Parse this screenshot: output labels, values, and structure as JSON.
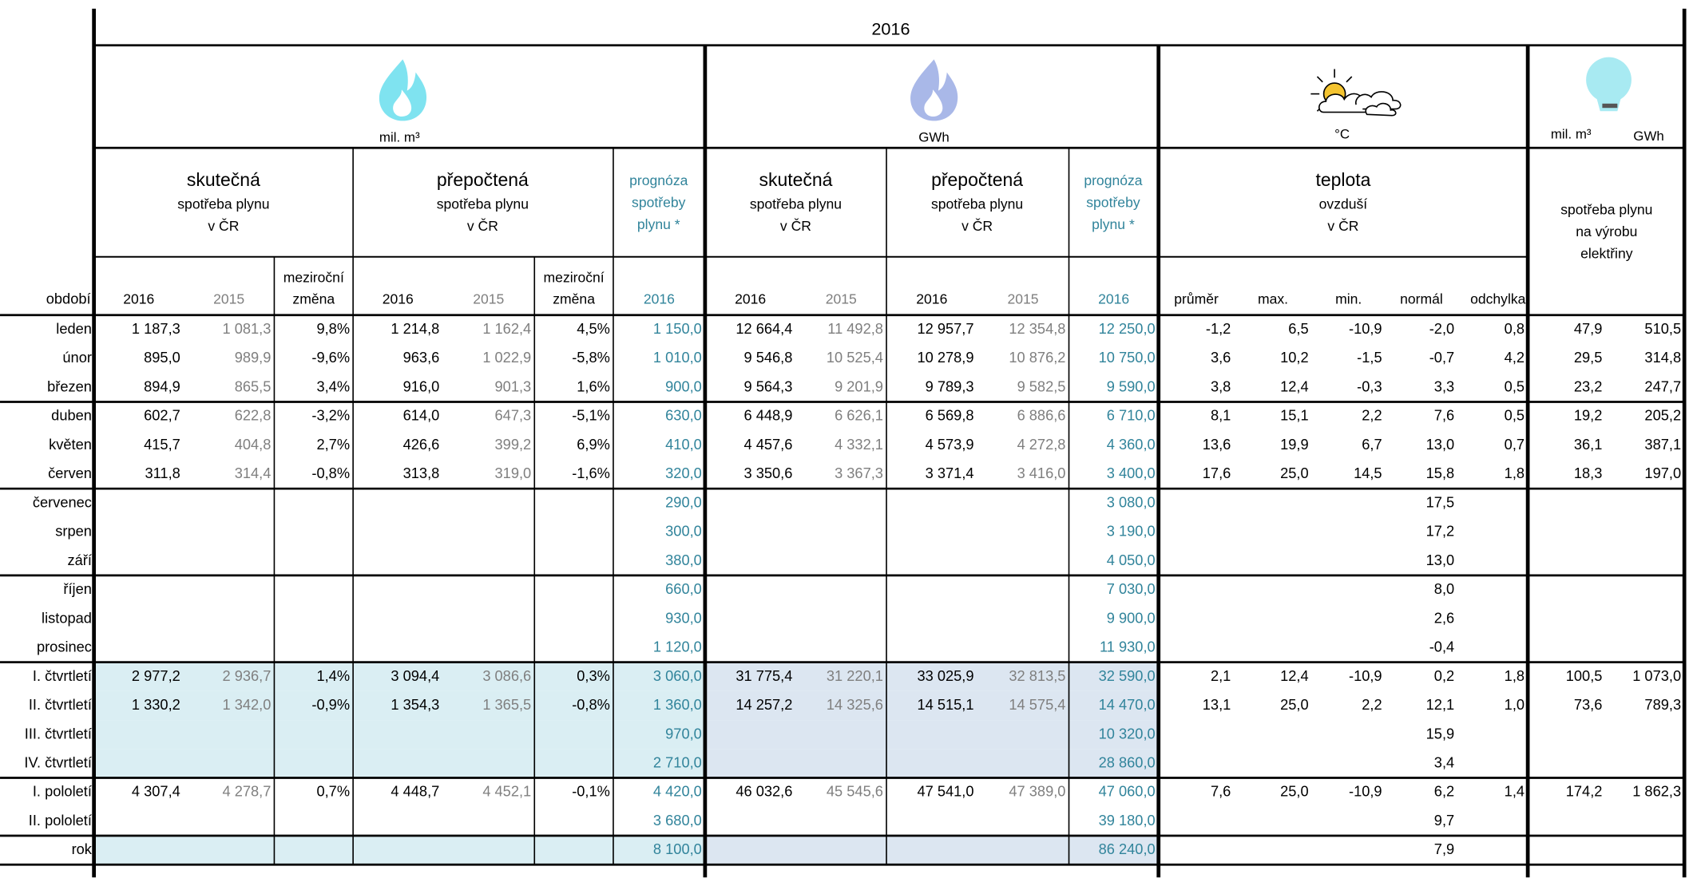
{
  "header": {
    "year": "2016",
    "units": [
      "mil. m³",
      "GWh",
      "°C",
      "mil. m³",
      "GWh"
    ],
    "groups": [
      {
        "title": "skutečná",
        "lines": [
          "spotřeba plynu",
          "v ČR"
        ]
      },
      {
        "title": "přepočtená",
        "lines": [
          "spotřeba plynu",
          "v ČR"
        ]
      },
      {
        "lines": [
          "prognóza",
          "spotřeby",
          "plynu *"
        ]
      },
      {
        "title": "skutečná",
        "lines": [
          "spotřeba plynu",
          "v ČR"
        ]
      },
      {
        "title": "přepočtená",
        "lines": [
          "spotřeba plynu",
          "v ČR"
        ]
      },
      {
        "lines": [
          "prognóza",
          "spotřeby",
          "plynu *"
        ]
      },
      {
        "title": "teplota",
        "lines": [
          "ovzduší",
          "v ČR"
        ]
      },
      {
        "lines": [
          "spotřeba plynu",
          "na výrobu",
          "elektřiny"
        ]
      }
    ]
  },
  "columns": [
    [
      "období"
    ],
    [
      "2016"
    ],
    [
      "2015"
    ],
    [
      "meziroční",
      "změna"
    ],
    [
      "2016"
    ],
    [
      "2015"
    ],
    [
      "meziroční",
      "změna"
    ],
    [
      "2016"
    ],
    [
      "2016"
    ],
    [
      "2015"
    ],
    [
      "2016"
    ],
    [
      "2015"
    ],
    [
      "2016"
    ],
    [
      "průměr"
    ],
    [
      "max."
    ],
    [
      "min."
    ],
    [
      "normál"
    ],
    [
      "odchylka"
    ]
  ],
  "rows": [
    {
      "label": "leden",
      "values": [
        "1 187,3",
        "1 081,3",
        "9,8%",
        "1 214,8",
        "1 162,4",
        "4,5%",
        "1 150,0",
        "12 664,4",
        "11 492,8",
        "12 957,7",
        "12 354,8",
        "12 250,0",
        "-1,2",
        "6,5",
        "-10,9",
        "-2,0",
        "0,8",
        "47,9",
        "510,5"
      ]
    },
    {
      "label": "únor",
      "values": [
        "895,0",
        "989,9",
        "-9,6%",
        "963,6",
        "1 022,9",
        "-5,8%",
        "1 010,0",
        "9 546,8",
        "10 525,4",
        "10 278,9",
        "10 876,2",
        "10 750,0",
        "3,6",
        "10,2",
        "-1,5",
        "-0,7",
        "4,2",
        "29,5",
        "314,8"
      ]
    },
    {
      "label": "březen",
      "values": [
        "894,9",
        "865,5",
        "3,4%",
        "916,0",
        "901,3",
        "1,6%",
        "900,0",
        "9 564,3",
        "9 201,9",
        "9 789,3",
        "9 582,5",
        "9 590,0",
        "3,8",
        "12,4",
        "-0,3",
        "3,3",
        "0,5",
        "23,2",
        "247,7"
      ]
    },
    {
      "label": "duben",
      "values": [
        "602,7",
        "622,8",
        "-3,2%",
        "614,0",
        "647,3",
        "-5,1%",
        "630,0",
        "6 448,9",
        "6 626,1",
        "6 569,8",
        "6 886,6",
        "6 710,0",
        "8,1",
        "15,1",
        "2,2",
        "7,6",
        "0,5",
        "19,2",
        "205,2"
      ]
    },
    {
      "label": "květen",
      "values": [
        "415,7",
        "404,8",
        "2,7%",
        "426,6",
        "399,2",
        "6,9%",
        "410,0",
        "4 457,6",
        "4 332,1",
        "4 573,9",
        "4 272,8",
        "4 360,0",
        "13,6",
        "19,9",
        "6,7",
        "13,0",
        "0,7",
        "36,1",
        "387,1"
      ]
    },
    {
      "label": "červen",
      "values": [
        "311,8",
        "314,4",
        "-0,8%",
        "313,8",
        "319,0",
        "-1,6%",
        "320,0",
        "3 350,6",
        "3 367,3",
        "3 371,4",
        "3 416,0",
        "3 400,0",
        "17,6",
        "25,0",
        "14,5",
        "15,8",
        "1,8",
        "18,3",
        "197,0"
      ]
    },
    {
      "label": "červenec",
      "values": [
        null,
        null,
        null,
        null,
        null,
        null,
        "290,0",
        null,
        null,
        null,
        null,
        "3 080,0",
        null,
        null,
        null,
        "17,5",
        null,
        null,
        null
      ]
    },
    {
      "label": "srpen",
      "values": [
        null,
        null,
        null,
        null,
        null,
        null,
        "300,0",
        null,
        null,
        null,
        null,
        "3 190,0",
        null,
        null,
        null,
        "17,2",
        null,
        null,
        null
      ]
    },
    {
      "label": "září",
      "values": [
        null,
        null,
        null,
        null,
        null,
        null,
        "380,0",
        null,
        null,
        null,
        null,
        "4 050,0",
        null,
        null,
        null,
        "13,0",
        null,
        null,
        null
      ]
    },
    {
      "label": "říjen",
      "values": [
        null,
        null,
        null,
        null,
        null,
        null,
        "660,0",
        null,
        null,
        null,
        null,
        "7 030,0",
        null,
        null,
        null,
        "8,0",
        null,
        null,
        null
      ]
    },
    {
      "label": "listopad",
      "values": [
        null,
        null,
        null,
        null,
        null,
        null,
        "930,0",
        null,
        null,
        null,
        null,
        "9 900,0",
        null,
        null,
        null,
        "2,6",
        null,
        null,
        null
      ]
    },
    {
      "label": "prosinec",
      "values": [
        null,
        null,
        null,
        null,
        null,
        null,
        "1 120,0",
        null,
        null,
        null,
        null,
        "11 930,0",
        null,
        null,
        null,
        "-0,4",
        null,
        null,
        null
      ]
    },
    {
      "label": "I. čtvrtletí",
      "values": [
        "2 977,2",
        "2 936,7",
        "1,4%",
        "3 094,4",
        "3 086,6",
        "0,3%",
        "3 060,0",
        "31 775,4",
        "31 220,1",
        "33 025,9",
        "32 813,5",
        "32 590,0",
        "2,1",
        "12,4",
        "-10,9",
        "0,2",
        "1,8",
        "100,5",
        "1 073,0"
      ]
    },
    {
      "label": "II. čtvrtletí",
      "values": [
        "1 330,2",
        "1 342,0",
        "-0,9%",
        "1 354,3",
        "1 365,5",
        "-0,8%",
        "1 360,0",
        "14 257,2",
        "14 325,6",
        "14 515,1",
        "14 575,4",
        "14 470,0",
        "13,1",
        "25,0",
        "2,2",
        "12,1",
        "1,0",
        "73,6",
        "789,3"
      ]
    },
    {
      "label": "III. čtvrtletí",
      "values": [
        null,
        null,
        null,
        null,
        null,
        null,
        "970,0",
        null,
        null,
        null,
        null,
        "10 320,0",
        null,
        null,
        null,
        "15,9",
        null,
        null,
        null
      ]
    },
    {
      "label": "IV. čtvrtletí",
      "values": [
        null,
        null,
        null,
        null,
        null,
        null,
        "2 710,0",
        null,
        null,
        null,
        null,
        "28 860,0",
        null,
        null,
        null,
        "3,4",
        null,
        null,
        null
      ]
    },
    {
      "label": "I. pololetí",
      "values": [
        "4 307,4",
        "4 278,7",
        "0,7%",
        "4 448,7",
        "4 452,1",
        "-0,1%",
        "4 420,0",
        "46 032,6",
        "45 545,6",
        "47 541,0",
        "47 389,0",
        "47 060,0",
        "7,6",
        "25,0",
        "-10,9",
        "6,2",
        "1,4",
        "174,2",
        "1 862,3"
      ]
    },
    {
      "label": "II. pololetí",
      "values": [
        null,
        null,
        null,
        null,
        null,
        null,
        "3 680,0",
        null,
        null,
        null,
        null,
        "39 180,0",
        null,
        null,
        null,
        "9,7",
        null,
        null,
        null
      ]
    },
    {
      "label": "rok",
      "values": [
        null,
        null,
        null,
        null,
        null,
        null,
        "8 100,0",
        null,
        null,
        null,
        null,
        "86 240,0",
        null,
        null,
        null,
        "7,9",
        null,
        null,
        null
      ]
    }
  ]
}
